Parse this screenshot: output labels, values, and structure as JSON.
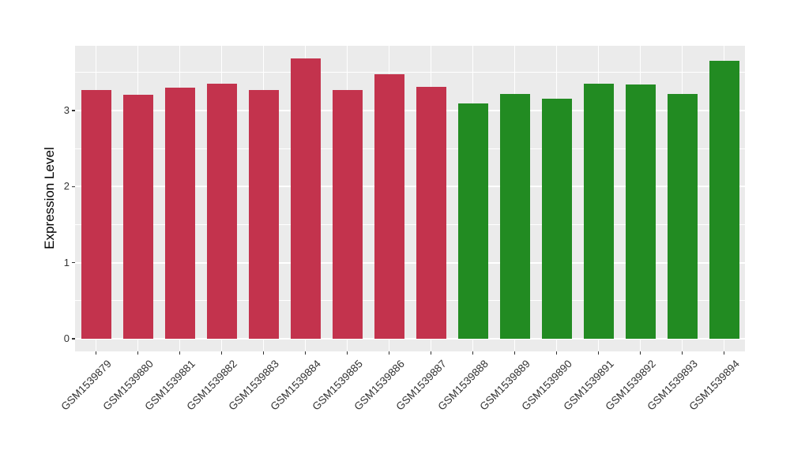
{
  "figure": {
    "background_color": "#FFFFFF",
    "panel_background_color": "#EBEBEB",
    "gridline_color": "#FFFFFF",
    "axis_text_color": "#333333",
    "axis_title_color": "#000000"
  },
  "chart_data": {
    "type": "bar",
    "title": "",
    "xlabel": "",
    "ylabel": "Expression Level",
    "categories": [
      "GSM1539879",
      "GSM1539880",
      "GSM1539881",
      "GSM1539882",
      "GSM1539883",
      "GSM1539884",
      "GSM1539885",
      "GSM1539886",
      "GSM1539887",
      "GSM1539888",
      "GSM1539889",
      "GSM1539890",
      "GSM1539891",
      "GSM1539892",
      "GSM1539893",
      "GSM1539894"
    ],
    "values": [
      3.27,
      3.21,
      3.3,
      3.35,
      3.27,
      3.69,
      3.27,
      3.48,
      3.31,
      3.09,
      3.22,
      3.16,
      3.35,
      3.34,
      3.22,
      3.66
    ],
    "bar_colors": [
      "#C3334D",
      "#C3334D",
      "#C3334D",
      "#C3334D",
      "#C3334D",
      "#C3334D",
      "#C3334D",
      "#C3334D",
      "#C3334D",
      "#228B22",
      "#228B22",
      "#228B22",
      "#228B22",
      "#228B22",
      "#228B22",
      "#228B22"
    ],
    "yticks": [
      "0",
      "1",
      "2",
      "3"
    ],
    "ytick_values": [
      0,
      1,
      2,
      3
    ],
    "ytick_minor_values": [
      0.5,
      1.5,
      2.5,
      3.5
    ],
    "ylim": [
      -0.18,
      3.85
    ],
    "xtick_rotation_deg": 45,
    "grid": "on",
    "legend": "none"
  }
}
